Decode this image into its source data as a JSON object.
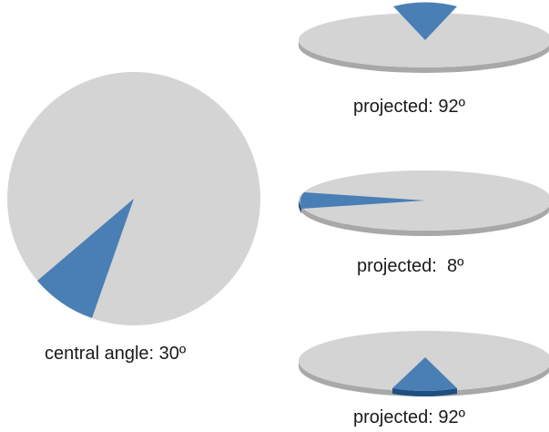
{
  "colors": {
    "disc": "#d4d4d4",
    "disc_edge": "#a8a8a8",
    "wedge": "#4a7fb5",
    "wedge_edge": "#1f4f7e",
    "text": "#1a1a1a"
  },
  "main_pie": {
    "caption": "central angle: 30º",
    "central_angle_deg": 30
  },
  "projections": [
    {
      "caption": "projected: 92º",
      "projected_angle_deg": 92,
      "wedge_direction": "up"
    },
    {
      "caption": "projected:  8º",
      "projected_angle_deg": 8,
      "wedge_direction": "left"
    },
    {
      "caption": "projected: 92º",
      "projected_angle_deg": 92,
      "wedge_direction": "down"
    }
  ]
}
